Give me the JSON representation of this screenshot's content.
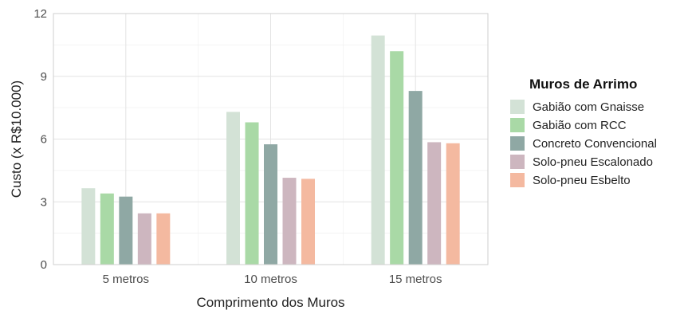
{
  "chart_data": {
    "type": "bar",
    "title": "",
    "xlabel": "Comprimento dos Muros",
    "ylabel": "Custo (x R$10.000)",
    "categories": [
      "5 metros",
      "10 metros",
      "15 metros"
    ],
    "ylim": [
      0,
      12
    ],
    "yticks": [
      "0",
      "3",
      "6",
      "9",
      "12"
    ],
    "grid": true,
    "legend": {
      "title": "Muros de Arrimo",
      "position": "right"
    },
    "series": [
      {
        "name": "Gabião com Gnaisse",
        "color": "#d3e2d6",
        "values": [
          3.65,
          7.3,
          10.95
        ]
      },
      {
        "name": "Gabião com RCC",
        "color": "#a9d9a6",
        "values": [
          3.4,
          6.8,
          10.2
        ]
      },
      {
        "name": "Concreto Convencional",
        "color": "#8fa8a4",
        "values": [
          3.25,
          5.75,
          8.3
        ]
      },
      {
        "name": "Solo-pneu Escalonado",
        "color": "#cdb6bf",
        "values": [
          2.45,
          4.15,
          5.85
        ]
      },
      {
        "name": "Solo-pneu Esbelto",
        "color": "#f4b9a0",
        "values": [
          2.45,
          4.1,
          5.8
        ]
      }
    ]
  }
}
